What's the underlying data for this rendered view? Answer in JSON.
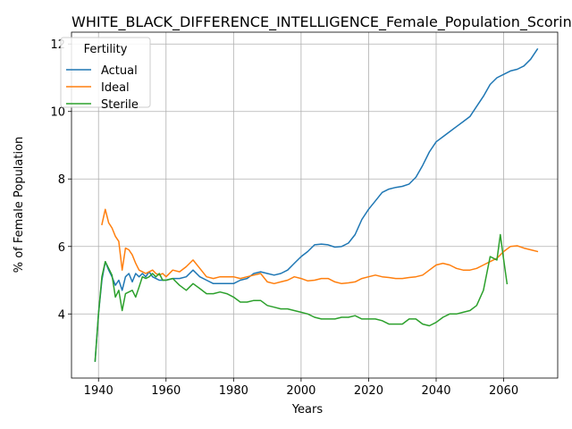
{
  "chart_data": {
    "type": "line",
    "title": "WHITE_BLACK_DIFFERENCE_INTELLIGENCE_Female_Population_Scoring: -",
    "xlabel": "Years",
    "ylabel": "% of Female Population",
    "xlim": [
      1932,
      2076
    ],
    "ylim": [
      2.1,
      12.35
    ],
    "xticks": [
      1940,
      1960,
      1980,
      2000,
      2020,
      2040,
      2060
    ],
    "yticks": [
      4,
      6,
      8,
      10,
      12
    ],
    "grid": true,
    "legend": {
      "title": "Fertility",
      "placement": "top-left"
    },
    "series": [
      {
        "name": "Actual",
        "color": "#1f77b4",
        "x": [
          1939,
          1940,
          1941,
          1942,
          1943,
          1944,
          1945,
          1946,
          1947,
          1948,
          1949,
          1950,
          1951,
          1952,
          1953,
          1954,
          1955,
          1956,
          1957,
          1958,
          1959,
          1960,
          1962,
          1964,
          1966,
          1968,
          1970,
          1972,
          1974,
          1976,
          1978,
          1980,
          1982,
          1984,
          1986,
          1988,
          1990,
          1992,
          1994,
          1996,
          1998,
          2000,
          2002,
          2004,
          2006,
          2008,
          2010,
          2012,
          2014,
          2016,
          2018,
          2020,
          2022,
          2024,
          2026,
          2028,
          2030,
          2032,
          2034,
          2036,
          2038,
          2040,
          2042,
          2044,
          2046,
          2048,
          2050,
          2052,
          2054,
          2056,
          2058,
          2060,
          2062,
          2064,
          2066,
          2068,
          2070
        ],
        "values": [
          2.6,
          4.0,
          5.0,
          5.55,
          5.3,
          5.1,
          4.85,
          5.0,
          4.7,
          5.1,
          5.2,
          4.95,
          5.2,
          5.1,
          5.2,
          5.1,
          5.25,
          5.1,
          5.05,
          5.0,
          5.0,
          5.0,
          5.05,
          5.05,
          5.1,
          5.3,
          5.1,
          5.0,
          4.9,
          4.9,
          4.9,
          4.9,
          5.0,
          5.05,
          5.2,
          5.25,
          5.2,
          5.15,
          5.2,
          5.3,
          5.5,
          5.7,
          5.85,
          6.05,
          6.07,
          6.05,
          5.98,
          6.0,
          6.1,
          6.35,
          6.8,
          7.1,
          7.35,
          7.6,
          7.7,
          7.75,
          7.78,
          7.85,
          8.05,
          8.4,
          8.8,
          9.1,
          9.25,
          9.4,
          9.55,
          9.7,
          9.85,
          10.15,
          10.45,
          10.8,
          11.0,
          11.1,
          11.2,
          11.25,
          11.35,
          11.55,
          11.85
        ]
      },
      {
        "name": "Ideal",
        "color": "#ff7f0e",
        "x": [
          1941,
          1942,
          1943,
          1944,
          1945,
          1946,
          1947,
          1948,
          1949,
          1950,
          1951,
          1952,
          1953,
          1954,
          1955,
          1956,
          1957,
          1958,
          1959,
          1960,
          1962,
          1964,
          1966,
          1968,
          1970,
          1972,
          1974,
          1976,
          1978,
          1980,
          1982,
          1984,
          1986,
          1988,
          1990,
          1992,
          1994,
          1996,
          1998,
          2000,
          2002,
          2004,
          2006,
          2008,
          2010,
          2012,
          2014,
          2016,
          2018,
          2020,
          2022,
          2024,
          2026,
          2028,
          2030,
          2032,
          2034,
          2036,
          2038,
          2040,
          2042,
          2044,
          2046,
          2048,
          2050,
          2052,
          2054,
          2056,
          2058,
          2060,
          2062,
          2064,
          2066,
          2068,
          2070
        ],
        "values": [
          6.65,
          7.1,
          6.7,
          6.55,
          6.3,
          6.15,
          5.3,
          5.95,
          5.9,
          5.75,
          5.5,
          5.3,
          5.25,
          5.2,
          5.25,
          5.3,
          5.2,
          5.15,
          5.2,
          5.1,
          5.3,
          5.25,
          5.4,
          5.6,
          5.35,
          5.1,
          5.05,
          5.1,
          5.1,
          5.1,
          5.05,
          5.1,
          5.15,
          5.2,
          4.95,
          4.9,
          4.95,
          5.0,
          5.1,
          5.05,
          4.98,
          5.0,
          5.05,
          5.05,
          4.95,
          4.9,
          4.92,
          4.95,
          5.05,
          5.1,
          5.15,
          5.1,
          5.08,
          5.05,
          5.05,
          5.08,
          5.1,
          5.15,
          5.3,
          5.45,
          5.5,
          5.45,
          5.35,
          5.3,
          5.3,
          5.35,
          5.45,
          5.55,
          5.65,
          5.85,
          6.0,
          6.02,
          5.95,
          5.9,
          5.85
        ]
      },
      {
        "name": "Sterile",
        "color": "#2ca02c",
        "x": [
          1939,
          1940,
          1941,
          1942,
          1943,
          1944,
          1945,
          1946,
          1947,
          1948,
          1949,
          1950,
          1951,
          1952,
          1953,
          1954,
          1955,
          1956,
          1957,
          1958,
          1959,
          1960,
          1962,
          1964,
          1966,
          1968,
          1970,
          1972,
          1974,
          1976,
          1978,
          1980,
          1982,
          1984,
          1986,
          1988,
          1990,
          1992,
          1994,
          1996,
          1998,
          2000,
          2002,
          2004,
          2006,
          2008,
          2010,
          2012,
          2014,
          2016,
          2018,
          2020,
          2022,
          2024,
          2026,
          2028,
          2030,
          2032,
          2034,
          2036,
          2038,
          2040,
          2042,
          2044,
          2046,
          2048,
          2050,
          2052,
          2054,
          2056,
          2058,
          2059,
          2060,
          2061
        ],
        "values": [
          2.6,
          4.0,
          5.1,
          5.55,
          5.35,
          5.15,
          4.5,
          4.7,
          4.1,
          4.6,
          4.65,
          4.7,
          4.5,
          4.8,
          5.1,
          5.05,
          5.1,
          5.2,
          5.1,
          5.2,
          5.0,
          5.0,
          5.05,
          4.85,
          4.7,
          4.9,
          4.75,
          4.6,
          4.6,
          4.65,
          4.6,
          4.5,
          4.35,
          4.35,
          4.4,
          4.4,
          4.25,
          4.2,
          4.15,
          4.15,
          4.1,
          4.05,
          4.0,
          3.9,
          3.85,
          3.85,
          3.85,
          3.9,
          3.9,
          3.95,
          3.85,
          3.85,
          3.85,
          3.8,
          3.7,
          3.7,
          3.7,
          3.85,
          3.85,
          3.7,
          3.65,
          3.75,
          3.9,
          4.0,
          4.0,
          4.05,
          4.1,
          4.25,
          4.7,
          5.7,
          5.6,
          6.35,
          5.6,
          4.9
        ]
      }
    ]
  }
}
